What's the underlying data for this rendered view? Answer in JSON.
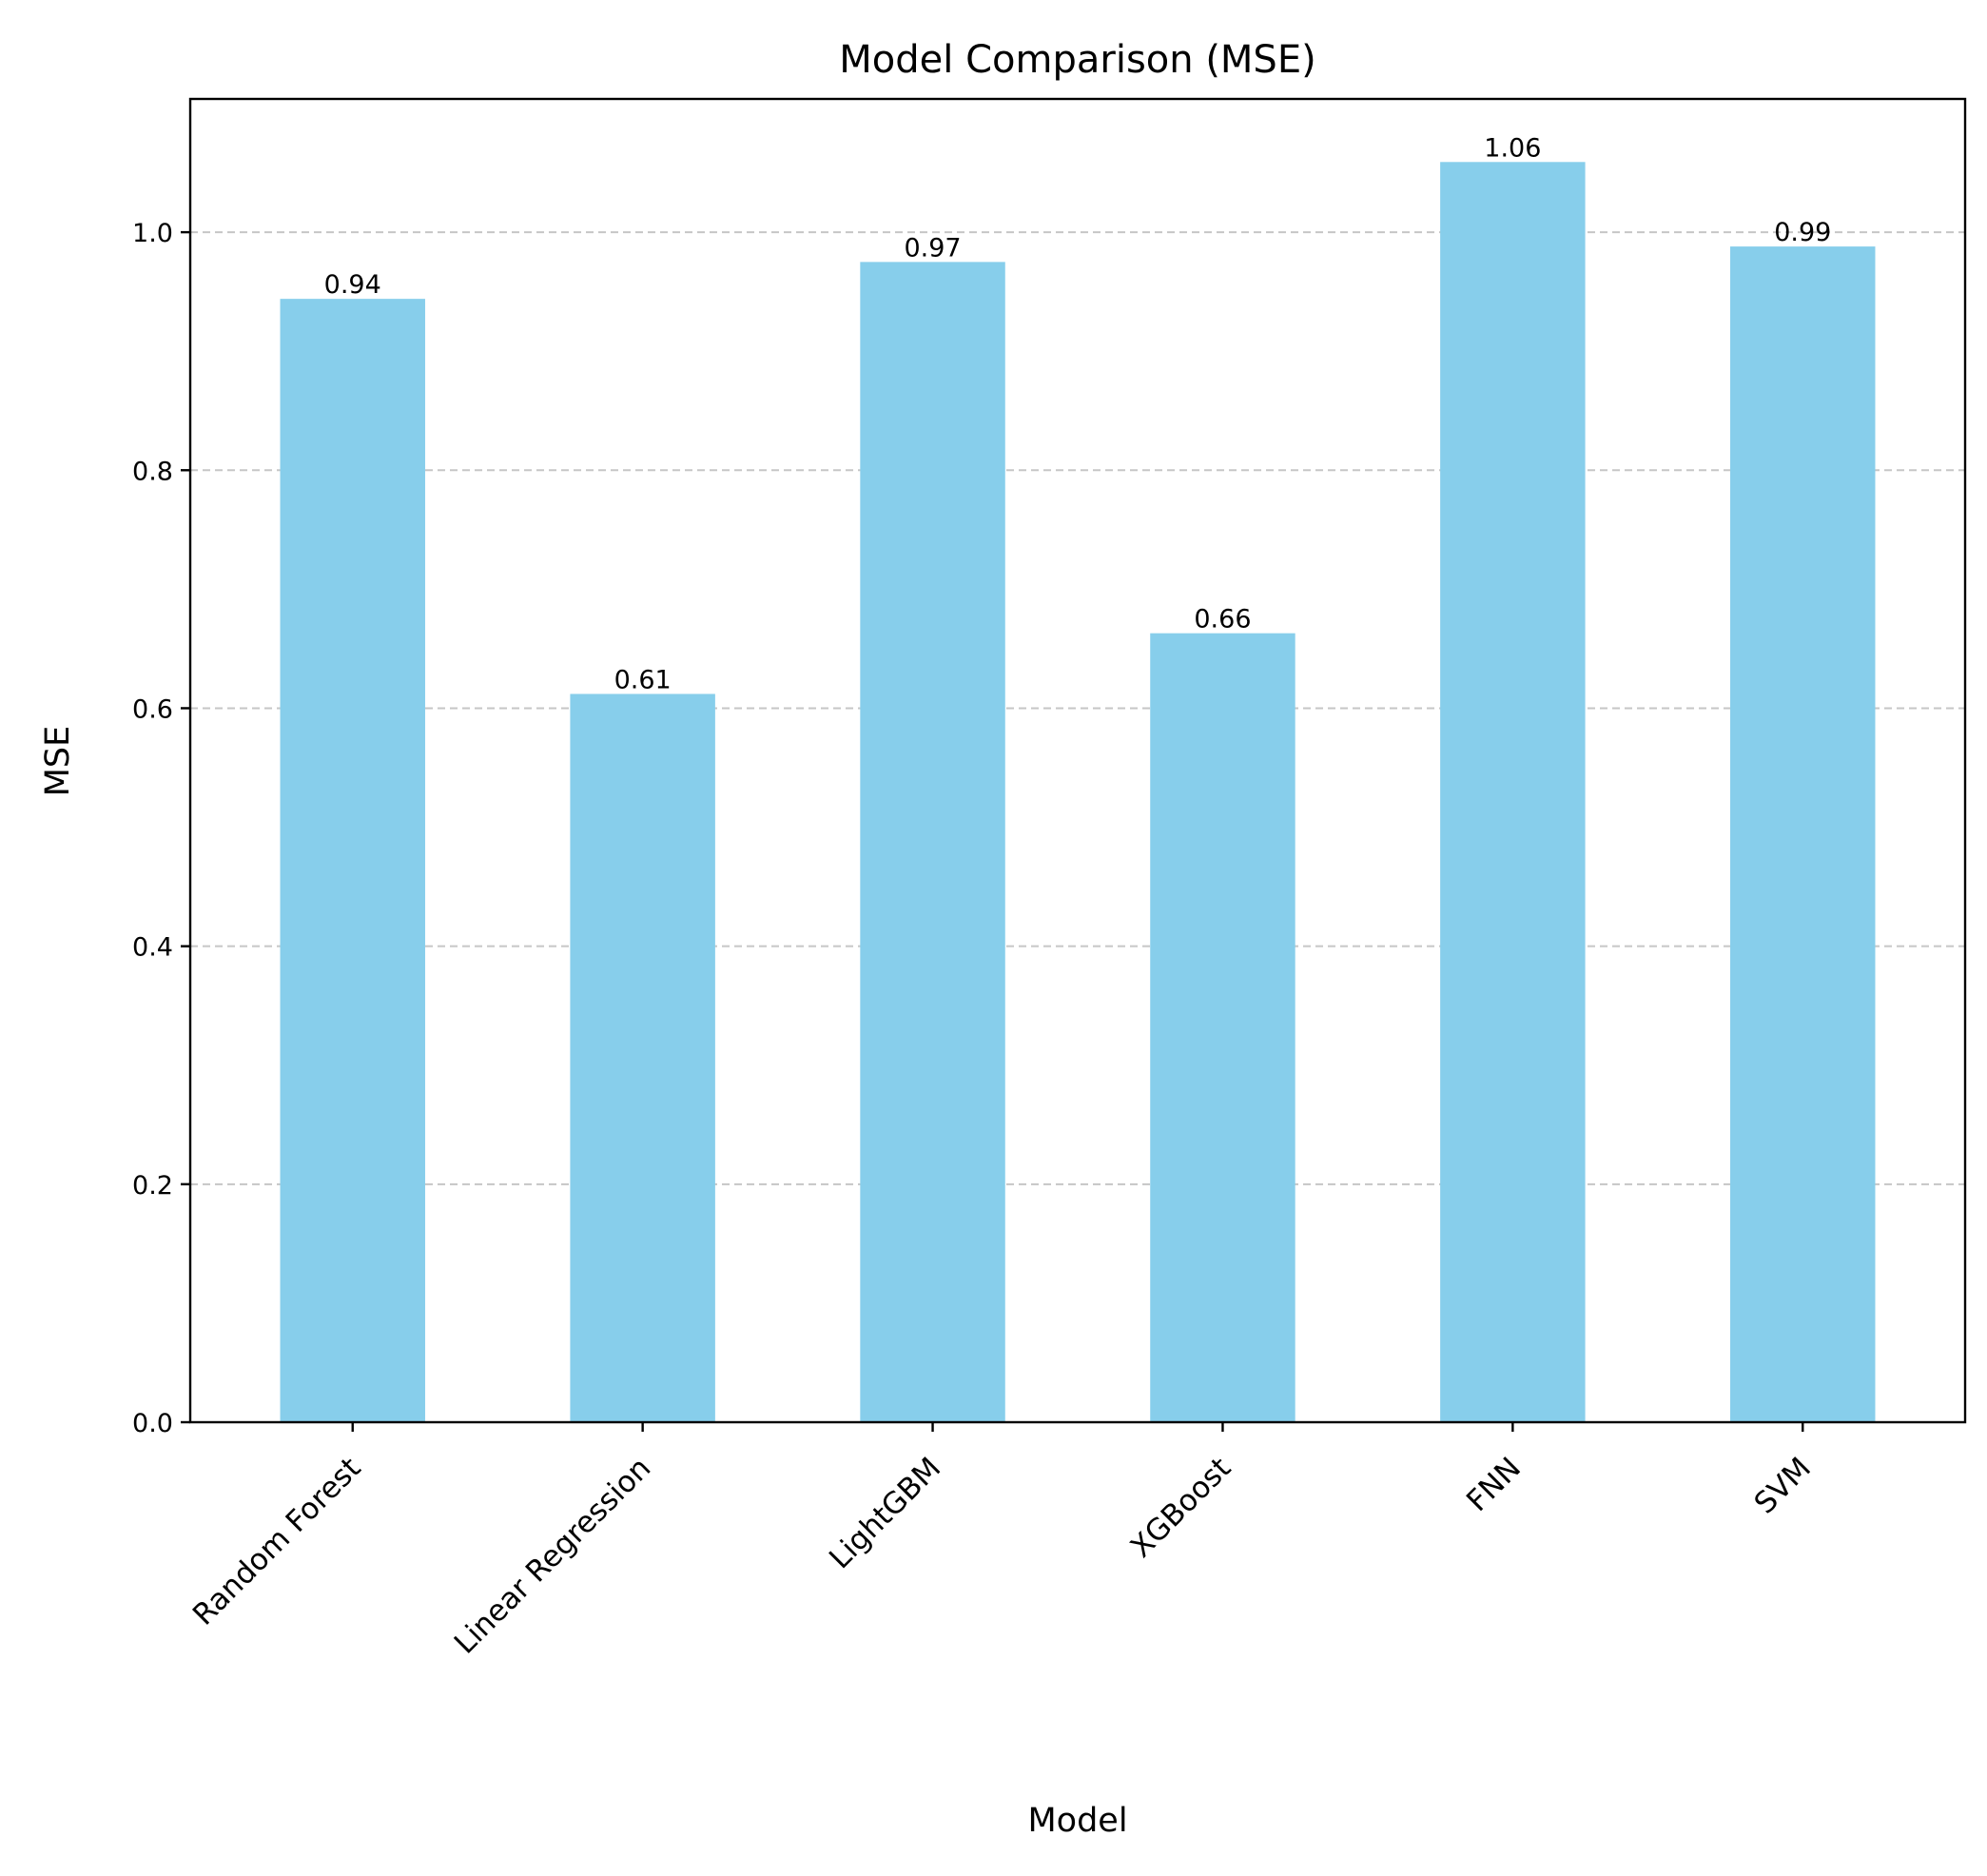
{
  "chart_data": {
    "type": "bar",
    "title": "Model Comparison (MSE)",
    "xlabel": "Model",
    "ylabel": "MSE",
    "categories": [
      "Random Forest",
      "Linear Regression",
      "LightGBM",
      "XGBoost",
      "FNN",
      "SVM"
    ],
    "values": [
      0.944,
      0.612,
      0.975,
      0.663,
      1.059,
      0.988
    ],
    "data_labels": [
      "0.94",
      "0.61",
      "0.97",
      "0.66",
      "1.06",
      "0.99"
    ],
    "ylim": [
      0,
      1.112
    ],
    "yticks": [
      0.0,
      0.2,
      0.4,
      0.6,
      0.8,
      1.0
    ],
    "ytick_labels": [
      "0.0",
      "0.2",
      "0.4",
      "0.6",
      "0.8",
      "1.0"
    ],
    "grid": "y-dashed",
    "legend": "none",
    "bar_color": "#87ceeb",
    "grid_color": "#c6c6c6"
  }
}
